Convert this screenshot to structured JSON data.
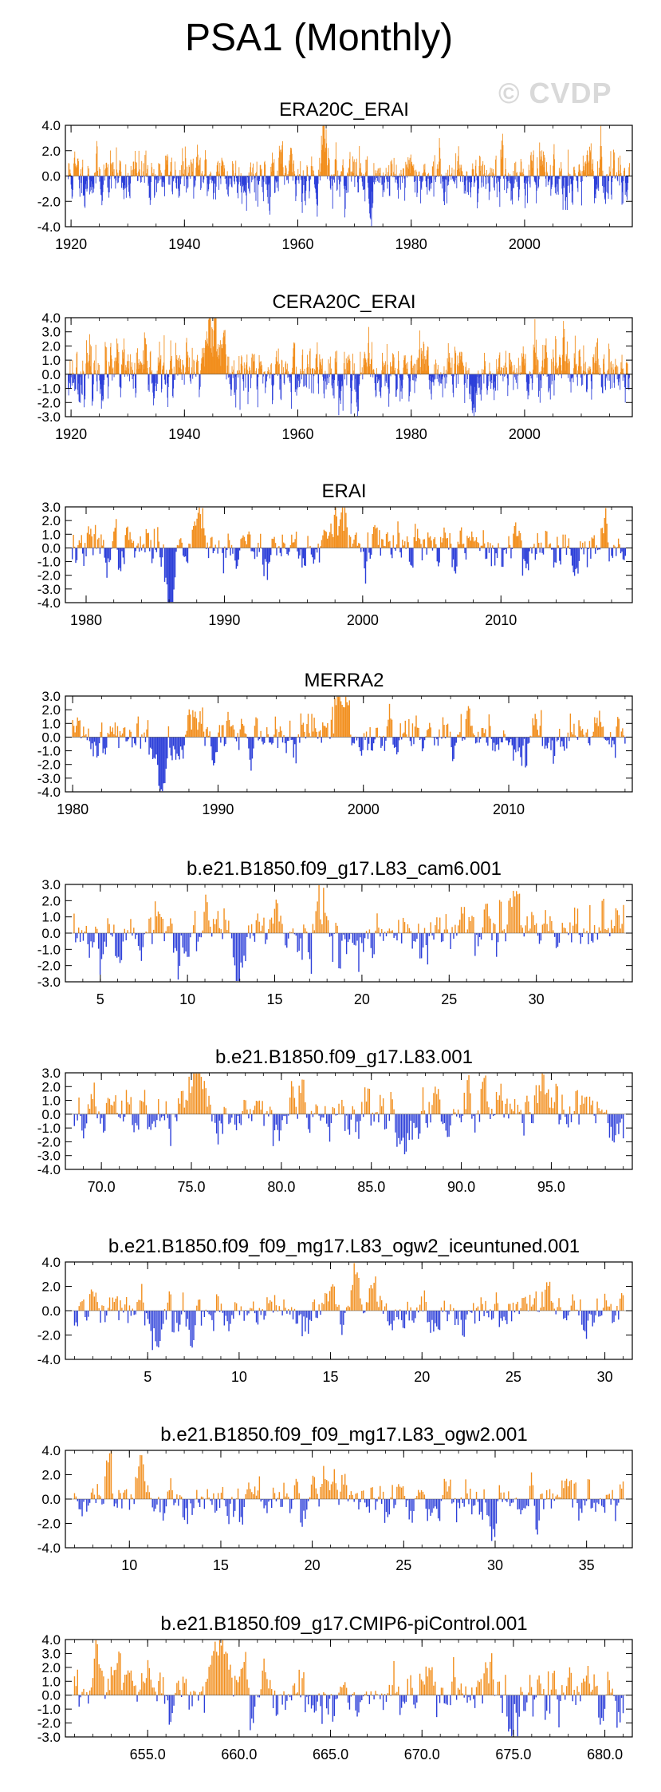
{
  "page": {
    "title": "PSA1 (Monthly)",
    "watermark": "© CVDP",
    "colors": {
      "positive": "#f28f1e",
      "negative": "#2c3fd9",
      "axis": "#000000"
    }
  },
  "chart_data": [
    {
      "type": "bar",
      "title": "ERA20C_ERAI",
      "x_range": [
        1919,
        2019
      ],
      "ylim": [
        -4.0,
        4.0
      ],
      "yticks": [
        4.0,
        2.0,
        0.0,
        -2.0,
        -4.0
      ],
      "ytick_labels": [
        "4.0",
        "2.0",
        "0.0",
        "-2.0",
        "-4.0"
      ],
      "xticks": [
        1920,
        1940,
        1960,
        1980,
        2000
      ],
      "xtick_labels": [
        "1920",
        "1940",
        "1960",
        "1980",
        "2000"
      ],
      "x_minor_step": 5,
      "months": 1200,
      "seed": 11,
      "amplitude": 0.9,
      "bursts": [
        {
          "x": 1964.5,
          "w": 0.4,
          "a": 2.2
        },
        {
          "x": 1973.0,
          "w": 0.3,
          "a": -1.5
        }
      ]
    },
    {
      "type": "bar",
      "title": "CERA20C_ERAI",
      "x_range": [
        1919,
        2019
      ],
      "ylim": [
        -3.0,
        4.0
      ],
      "yticks": [
        4.0,
        3.0,
        2.0,
        1.0,
        0.0,
        -1.0,
        -2.0,
        -3.0
      ],
      "ytick_labels": [
        "4.0",
        "3.0",
        "2.0",
        "1.0",
        "0.0",
        "-1.0",
        "-2.0",
        "-3.0"
      ],
      "xticks": [
        1920,
        1940,
        1960,
        1980,
        2000
      ],
      "xtick_labels": [
        "1920",
        "1940",
        "1960",
        "1980",
        "2000"
      ],
      "x_minor_step": 5,
      "months": 1200,
      "seed": 23,
      "amplitude": 0.9,
      "bursts": [
        {
          "x": 1945.0,
          "w": 1.6,
          "a": 1.9
        },
        {
          "x": 1990.5,
          "w": 0.6,
          "a": -1.3
        }
      ]
    },
    {
      "type": "bar",
      "title": "ERAI",
      "x_range": [
        1978.5,
        2019.5
      ],
      "ylim": [
        -4.0,
        3.0
      ],
      "yticks": [
        3.0,
        2.0,
        1.0,
        0.0,
        -1.0,
        -2.0,
        -3.0,
        -4.0
      ],
      "ytick_labels": [
        "3.0",
        "2.0",
        "1.0",
        "0.0",
        "-1.0",
        "-2.0",
        "-3.0",
        "-4.0"
      ],
      "xticks": [
        1980,
        1990,
        2000,
        2010
      ],
      "xtick_labels": [
        "1980",
        "1990",
        "2000",
        "2010"
      ],
      "x_minor_step": 2,
      "months": 480,
      "seed": 37,
      "amplitude": 0.75,
      "bursts": [
        {
          "x": 1988.2,
          "w": 0.5,
          "a": 1.5
        },
        {
          "x": 1998.3,
          "w": 0.5,
          "a": 1.3
        },
        {
          "x": 1986.0,
          "w": 0.4,
          "a": -1.6
        }
      ]
    },
    {
      "type": "bar",
      "title": "MERRA2",
      "x_range": [
        1979.5,
        2018.5
      ],
      "ylim": [
        -4.0,
        3.0
      ],
      "yticks": [
        3.0,
        2.0,
        1.0,
        0.0,
        -1.0,
        -2.0,
        -3.0,
        -4.0
      ],
      "ytick_labels": [
        "3.0",
        "2.0",
        "1.0",
        "0.0",
        "-1.0",
        "-2.0",
        "-3.0",
        "-4.0"
      ],
      "xticks": [
        1980,
        1990,
        2000,
        2010
      ],
      "xtick_labels": [
        "1980",
        "1990",
        "2000",
        "2010"
      ],
      "x_minor_step": 2,
      "months": 456,
      "seed": 41,
      "amplitude": 0.75,
      "bursts": [
        {
          "x": 1988.2,
          "w": 0.5,
          "a": 1.4
        },
        {
          "x": 1998.3,
          "w": 0.6,
          "a": 1.3
        },
        {
          "x": 1986.0,
          "w": 0.4,
          "a": -1.6
        }
      ]
    },
    {
      "type": "bar",
      "title": "b.e21.B1850.f09_g17.L83_cam6.001",
      "x_range": [
        3.0,
        35.5
      ],
      "ylim": [
        -3.0,
        3.0
      ],
      "yticks": [
        3.0,
        2.0,
        1.0,
        0.0,
        -1.0,
        -2.0,
        -3.0
      ],
      "ytick_labels": [
        "3.0",
        "2.0",
        "1.0",
        "0.0",
        "-1.0",
        "-2.0",
        "-3.0"
      ],
      "xticks": [
        5,
        10,
        15,
        20,
        25,
        30
      ],
      "xtick_labels": [
        "5",
        "10",
        "15",
        "20",
        "25",
        "30"
      ],
      "x_minor_step": 1,
      "months": 360,
      "seed": 53,
      "amplitude": 0.85,
      "bursts": [
        {
          "x": 28.5,
          "w": 0.3,
          "a": 1.2
        },
        {
          "x": 17.5,
          "w": 0.3,
          "a": 1.0
        },
        {
          "x": 12.8,
          "w": 0.2,
          "a": -1.4
        }
      ]
    },
    {
      "type": "bar",
      "title": "b.e21.B1850.f09_g17.L83.001",
      "x_range": [
        68.0,
        99.5
      ],
      "ylim": [
        -4.0,
        3.0
      ],
      "yticks": [
        3.0,
        2.0,
        1.0,
        0.0,
        -1.0,
        -2.0,
        -3.0,
        -4.0
      ],
      "ytick_labels": [
        "3.0",
        "2.0",
        "1.0",
        "0.0",
        "-1.0",
        "-2.0",
        "-3.0",
        "-4.0"
      ],
      "xticks": [
        70,
        75,
        80,
        85,
        90,
        95
      ],
      "xtick_labels": [
        "70.0",
        "75.0",
        "80.0",
        "85.0",
        "90.0",
        "95.0"
      ],
      "x_minor_step": 1,
      "months": 360,
      "seed": 67,
      "amplitude": 0.85,
      "bursts": [
        {
          "x": 75.3,
          "w": 0.2,
          "a": 1.2
        },
        {
          "x": 86.8,
          "w": 0.3,
          "a": -1.8
        },
        {
          "x": 82.3,
          "w": 0.2,
          "a": -1.5
        }
      ]
    },
    {
      "type": "bar",
      "title": "b.e21.B1850.f09_f09_mg17.L83_ogw2_iceuntuned.001",
      "x_range": [
        0.5,
        31.5
      ],
      "ylim": [
        -4.0,
        4.0
      ],
      "yticks": [
        4.0,
        2.0,
        0.0,
        -2.0,
        -4.0
      ],
      "ytick_labels": [
        "4.0",
        "2.0",
        "0.0",
        "-2.0",
        "-4.0"
      ],
      "xticks": [
        5,
        10,
        15,
        20,
        25,
        30
      ],
      "xtick_labels": [
        "5",
        "10",
        "15",
        "20",
        "25",
        "30"
      ],
      "x_minor_step": 1,
      "months": 360,
      "seed": 79,
      "amplitude": 0.8,
      "bursts": [
        {
          "x": 16.2,
          "w": 0.3,
          "a": 2.0
        },
        {
          "x": 26.8,
          "w": 0.3,
          "a": 1.2
        },
        {
          "x": 5.5,
          "w": 0.2,
          "a": -1.4
        }
      ]
    },
    {
      "type": "bar",
      "title": "b.e21.B1850.f09_f09_mg17.L83_ogw2.001",
      "x_range": [
        6.5,
        37.5
      ],
      "ylim": [
        -4.0,
        4.0
      ],
      "yticks": [
        4.0,
        2.0,
        0.0,
        -2.0,
        -4.0
      ],
      "ytick_labels": [
        "4.0",
        "2.0",
        "0.0",
        "-2.0",
        "-4.0"
      ],
      "xticks": [
        10,
        15,
        20,
        25,
        30,
        35
      ],
      "xtick_labels": [
        "10",
        "15",
        "20",
        "25",
        "30",
        "35"
      ],
      "x_minor_step": 1,
      "months": 360,
      "seed": 83,
      "amplitude": 0.85,
      "bursts": [
        {
          "x": 10.6,
          "w": 0.2,
          "a": 2.2
        },
        {
          "x": 29.8,
          "w": 0.2,
          "a": -1.8
        }
      ]
    },
    {
      "type": "bar",
      "title": "b.e21.B1850.f09_g17.CMIP6-piControl.001",
      "x_range": [
        650.5,
        681.5
      ],
      "ylim": [
        -3.0,
        4.0
      ],
      "yticks": [
        4.0,
        3.0,
        2.0,
        1.0,
        0.0,
        -1.0,
        -2.0,
        -3.0
      ],
      "ytick_labels": [
        "4.0",
        "3.0",
        "2.0",
        "1.0",
        "0.0",
        "-1.0",
        "-2.0",
        "-3.0"
      ],
      "xticks": [
        655,
        660,
        665,
        670,
        675,
        680
      ],
      "xtick_labels": [
        "655.0",
        "660.0",
        "665.0",
        "670.0",
        "675.0",
        "680.0"
      ],
      "x_minor_step": 1,
      "months": 360,
      "seed": 97,
      "amplitude": 0.95,
      "bursts": [
        {
          "x": 658.8,
          "w": 0.5,
          "a": 2.0
        },
        {
          "x": 653.3,
          "w": 0.4,
          "a": 1.2
        },
        {
          "x": 674.9,
          "w": 0.3,
          "a": -1.6
        }
      ]
    }
  ]
}
